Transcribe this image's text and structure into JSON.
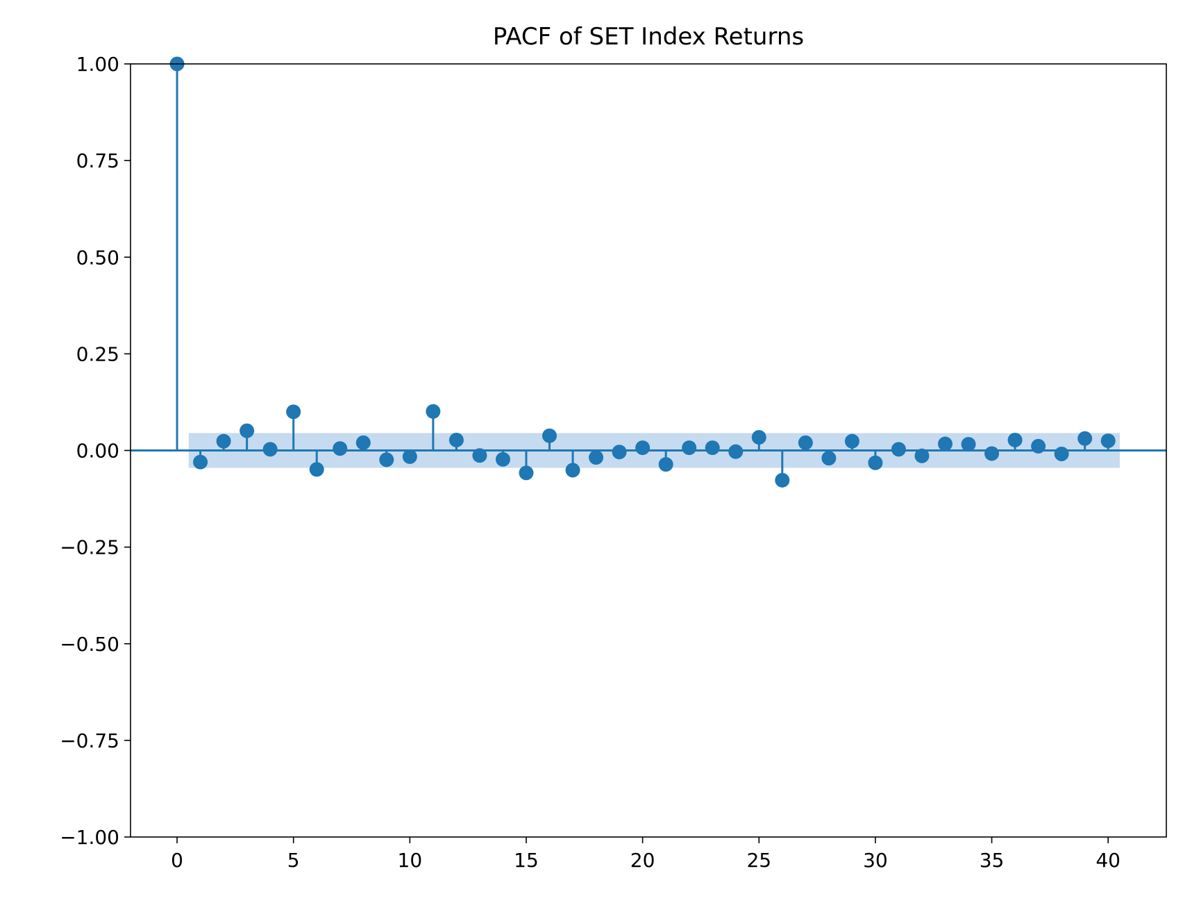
{
  "chart_data": {
    "type": "stem",
    "title": "PACF of SET Index Returns",
    "xlabel": "",
    "ylabel": "",
    "xlim": [
      -2,
      42.5
    ],
    "ylim": [
      -1.0,
      1.0
    ],
    "x_ticks": [
      0,
      5,
      10,
      15,
      20,
      25,
      30,
      35,
      40
    ],
    "x_tick_labels": [
      "0",
      "5",
      "10",
      "15",
      "20",
      "25",
      "30",
      "35",
      "40"
    ],
    "y_ticks": [
      1.0,
      0.75,
      0.5,
      0.25,
      0.0,
      -0.25,
      -0.5,
      -0.75,
      -1.0
    ],
    "y_tick_labels": [
      "1.00",
      "0.75",
      "0.50",
      "0.25",
      "0.00",
      "−0.25",
      "−0.50",
      "−0.75",
      "−1.00"
    ],
    "grid": false,
    "colors": {
      "series": "#1f77b4",
      "confidence_band": "#c6dbef"
    },
    "confidence_band": {
      "x_range": [
        0.5,
        40.5
      ],
      "lower": -0.045,
      "upper": 0.045
    },
    "series": [
      {
        "x": [
          0,
          1,
          2,
          3,
          4,
          5,
          6,
          7,
          8,
          9,
          10,
          11,
          12,
          13,
          14,
          15,
          16,
          17,
          18,
          19,
          20,
          21,
          22,
          23,
          24,
          25,
          26,
          27,
          28,
          29,
          30,
          31,
          32,
          33,
          34,
          35,
          36,
          37,
          38,
          39,
          40
        ],
        "values": [
          1.0,
          -0.03,
          0.024,
          0.051,
          0.003,
          0.1,
          -0.049,
          0.005,
          0.02,
          -0.024,
          -0.016,
          0.101,
          0.027,
          -0.013,
          -0.023,
          -0.058,
          0.038,
          -0.051,
          -0.018,
          -0.004,
          0.007,
          -0.036,
          0.007,
          0.007,
          -0.003,
          0.034,
          -0.077,
          0.02,
          -0.02,
          0.024,
          -0.032,
          0.003,
          -0.014,
          0.017,
          0.016,
          -0.008,
          0.027,
          0.011,
          -0.009,
          0.031,
          0.025
        ]
      }
    ]
  }
}
